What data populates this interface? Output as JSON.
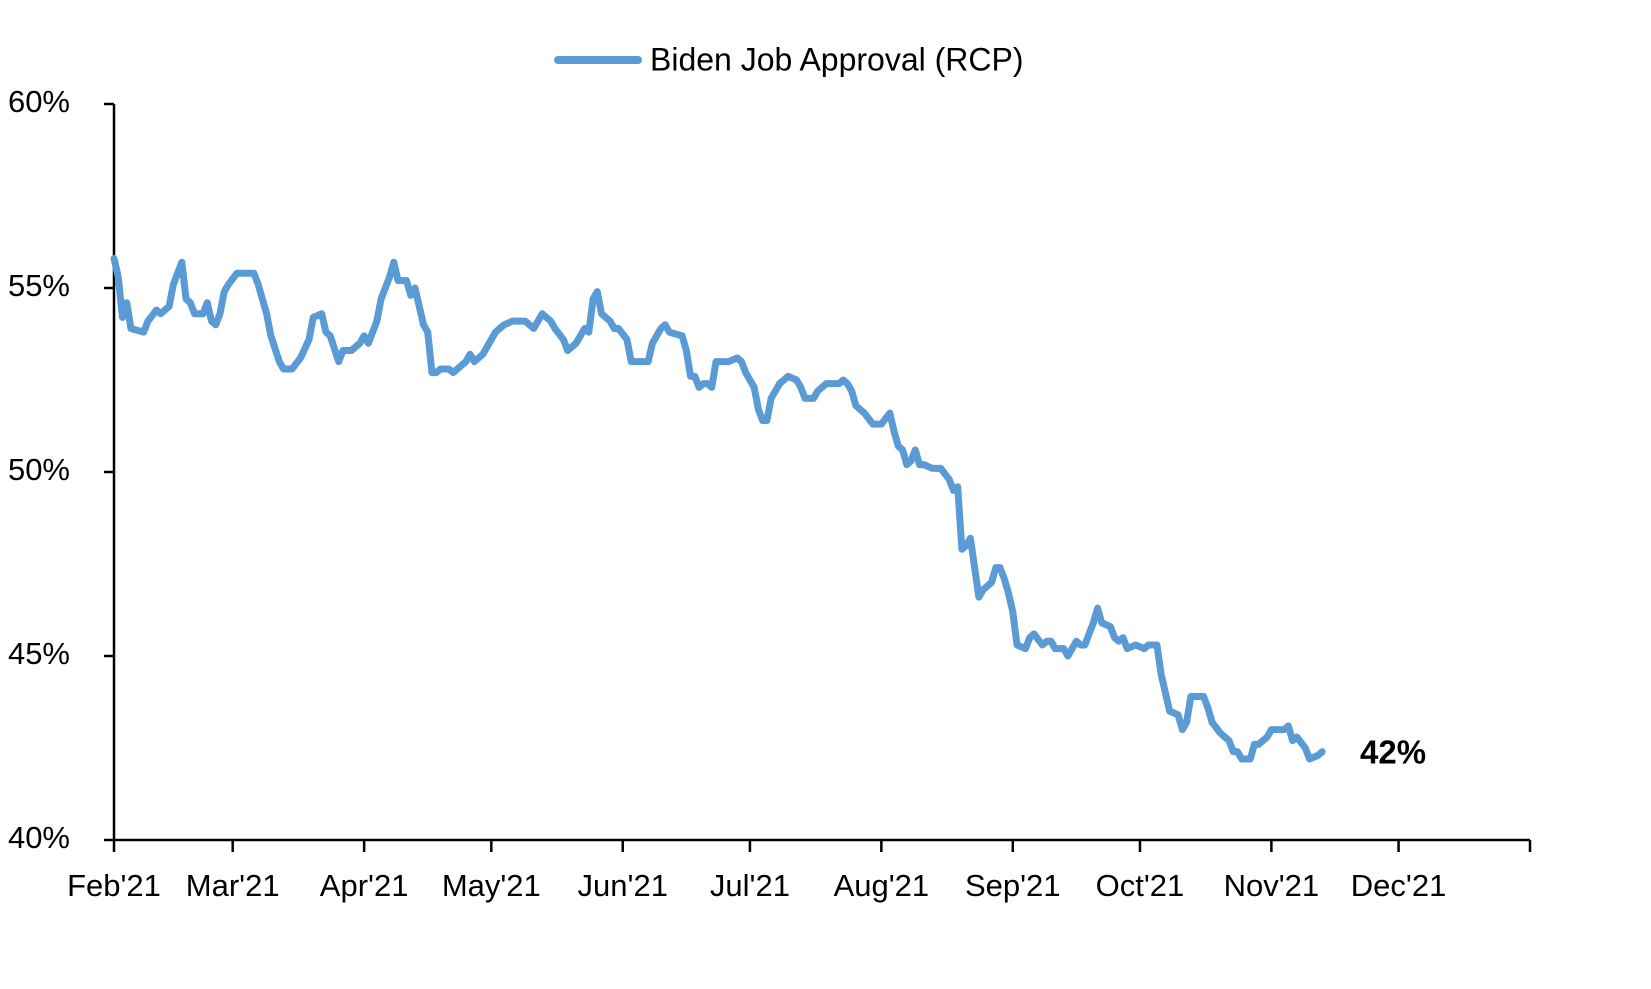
{
  "chart_data": {
    "type": "line",
    "x": [
      0,
      1,
      2,
      3,
      4,
      7,
      8,
      10,
      11,
      13,
      14,
      16,
      17,
      18,
      19,
      21,
      22,
      23,
      24,
      25,
      26,
      27,
      29,
      33,
      34,
      36,
      37,
      39,
      40,
      42,
      44,
      46,
      47,
      49,
      50,
      51,
      53,
      54,
      56,
      58,
      59,
      60,
      62,
      63,
      65,
      66,
      67,
      69,
      70,
      71,
      73,
      74,
      75,
      76,
      77,
      79,
      80,
      82,
      83,
      84,
      85,
      87,
      89,
      90,
      92,
      94,
      97,
      99,
      101,
      103,
      104,
      106,
      107,
      109,
      111,
      112,
      113,
      114,
      115,
      117,
      118,
      119,
      121,
      122,
      126,
      127,
      129,
      130,
      131,
      134,
      135,
      136,
      137,
      138,
      139,
      140,
      141,
      142,
      145,
      147,
      148,
      149,
      151,
      152,
      153,
      154,
      155,
      157,
      158,
      159,
      161,
      162,
      163,
      165,
      166,
      168,
      171,
      172,
      173,
      174,
      175,
      177,
      179,
      181,
      183,
      184,
      185,
      186,
      187,
      188,
      189,
      190,
      191,
      193,
      195,
      197,
      198,
      199,
      200,
      201,
      202,
      203,
      204,
      205,
      207,
      208,
      209,
      210,
      211,
      212,
      213,
      215,
      216,
      217,
      219,
      220,
      221,
      222,
      224,
      225,
      227,
      228,
      229,
      231,
      232,
      233,
      235,
      236,
      237,
      238,
      239,
      241,
      243,
      244,
      246,
      247,
      249,
      251,
      252,
      253,
      254,
      257,
      258,
      259,
      261,
      263,
      264,
      265,
      266,
      268,
      269,
      270,
      272,
      273,
      276,
      277,
      278,
      279,
      281,
      282,
      284,
      285
    ],
    "series": [
      {
        "name": "Biden Job Approval (RCP)",
        "color": "#5b9bd5",
        "values": [
          55.8,
          55.3,
          54.2,
          54.6,
          53.9,
          53.8,
          54.1,
          54.4,
          54.3,
          54.5,
          55.1,
          55.7,
          54.7,
          54.6,
          54.3,
          54.3,
          54.6,
          54.1,
          54.0,
          54.3,
          54.9,
          55.1,
          55.4,
          55.4,
          55.1,
          54.3,
          53.7,
          53.0,
          52.8,
          52.8,
          53.1,
          53.6,
          54.2,
          54.3,
          53.8,
          53.7,
          53.0,
          53.3,
          53.3,
          53.5,
          53.7,
          53.5,
          54.1,
          54.7,
          55.3,
          55.7,
          55.2,
          55.2,
          54.8,
          55.0,
          54.0,
          53.8,
          52.7,
          52.7,
          52.8,
          52.8,
          52.7,
          52.9,
          53.0,
          53.2,
          53.0,
          53.2,
          53.6,
          53.8,
          54.0,
          54.1,
          54.1,
          53.9,
          54.3,
          54.1,
          53.9,
          53.6,
          53.3,
          53.5,
          53.9,
          53.8,
          54.7,
          54.9,
          54.3,
          54.1,
          53.9,
          53.9,
          53.6,
          53.0,
          53.0,
          53.5,
          53.9,
          54.0,
          53.8,
          53.7,
          53.3,
          52.6,
          52.6,
          52.3,
          52.4,
          52.4,
          52.3,
          53.0,
          53.0,
          53.1,
          53.0,
          52.7,
          52.3,
          51.7,
          51.4,
          51.4,
          52.0,
          52.4,
          52.5,
          52.6,
          52.5,
          52.3,
          52.0,
          52.0,
          52.2,
          52.4,
          52.4,
          52.5,
          52.4,
          52.2,
          51.8,
          51.6,
          51.3,
          51.3,
          51.6,
          51.1,
          50.7,
          50.6,
          50.2,
          50.3,
          50.6,
          50.2,
          50.2,
          50.1,
          50.1,
          49.8,
          49.5,
          49.6,
          47.9,
          48.0,
          48.2,
          47.4,
          46.6,
          46.8,
          47.0,
          47.4,
          47.4,
          47.1,
          46.7,
          46.2,
          45.3,
          45.2,
          45.5,
          45.6,
          45.3,
          45.4,
          45.4,
          45.2,
          45.2,
          45.0,
          45.4,
          45.3,
          45.3,
          45.9,
          46.3,
          45.9,
          45.8,
          45.5,
          45.4,
          45.5,
          45.2,
          45.3,
          45.2,
          45.3,
          45.3,
          44.5,
          43.5,
          43.4,
          43.0,
          43.2,
          43.9,
          43.9,
          43.6,
          43.2,
          42.9,
          42.7,
          42.4,
          42.4,
          42.2,
          42.2,
          42.6,
          42.6,
          42.8,
          43.0,
          43.0,
          43.1,
          42.7,
          42.8,
          42.5,
          42.2,
          42.3,
          42.4
        ]
      }
    ],
    "xlim": [
      0,
      334
    ],
    "xticks": [
      {
        "value": 0,
        "label": "Feb'21"
      },
      {
        "value": 28,
        "label": "Mar'21"
      },
      {
        "value": 59,
        "label": "Apr'21"
      },
      {
        "value": 89,
        "label": "May'21"
      },
      {
        "value": 120,
        "label": "Jun'21"
      },
      {
        "value": 150,
        "label": "Jul'21"
      },
      {
        "value": 181,
        "label": "Aug'21"
      },
      {
        "value": 212,
        "label": "Sep'21"
      },
      {
        "value": 242,
        "label": "Oct'21"
      },
      {
        "value": 273,
        "label": "Nov'21"
      },
      {
        "value": 303,
        "label": "Dec'21"
      }
    ],
    "ylim": [
      40,
      60
    ],
    "yticks": [
      {
        "value": 40,
        "label": "40%"
      },
      {
        "value": 45,
        "label": "45%"
      },
      {
        "value": 50,
        "label": "50%"
      },
      {
        "value": 55,
        "label": "55%"
      },
      {
        "value": 60,
        "label": "60%"
      }
    ],
    "annotation": "42%",
    "legend": "top"
  }
}
